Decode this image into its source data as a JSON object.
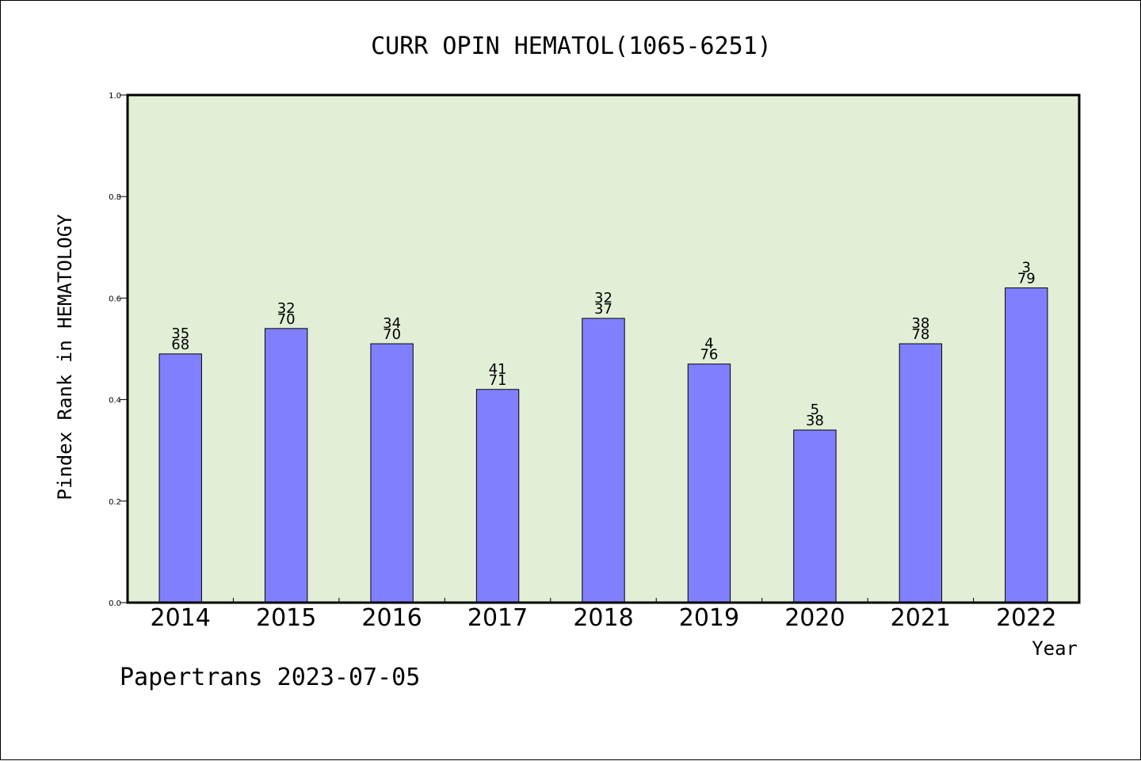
{
  "chart_data": {
    "type": "bar",
    "title": "CURR OPIN HEMATOL(1065-6251)",
    "xlabel": "Year",
    "ylabel": "Pindex Rank in HEMATOLOGY",
    "ylim": [
      0,
      1.0
    ],
    "yticks": [
      "0.0",
      "0.2",
      "0.4",
      "0.6",
      "0.8",
      "1.0"
    ],
    "ytick_values": [
      0,
      0.2,
      0.4,
      0.6,
      0.8,
      1.0
    ],
    "categories": [
      "2014",
      "2015",
      "2016",
      "2017",
      "2018",
      "2019",
      "2020",
      "2021",
      "2022"
    ],
    "values": [
      0.49,
      0.54,
      0.51,
      0.42,
      0.56,
      0.47,
      0.34,
      0.51,
      0.62
    ],
    "rank_labels": [
      "35",
      "32",
      "34",
      "41",
      "32",
      "4",
      "5",
      "38",
      "3"
    ],
    "total_labels": [
      "68",
      "70",
      "70",
      "71",
      "37",
      "76",
      "38",
      "78",
      "79"
    ],
    "grid": false,
    "colors": {
      "bar_fill": "#8080ff",
      "plot_background": "#e2efd6",
      "axis": "#000000"
    }
  },
  "footer": {
    "text": "Papertrans 2023-07-05"
  }
}
